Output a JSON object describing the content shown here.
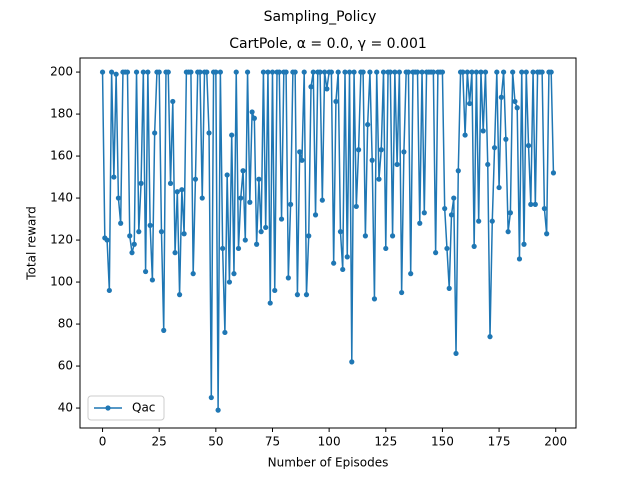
{
  "chart_data": {
    "type": "line",
    "suptitle": "Sampling_Policy",
    "title": "CartPole, α = 0.0, γ = 0.001",
    "xlabel": "Number of Episodes",
    "ylabel": "Total reward",
    "x": [
      0,
      1,
      2,
      3,
      4,
      5,
      6,
      7,
      8,
      9,
      10,
      11,
      12,
      13,
      14,
      15,
      16,
      17,
      18,
      19,
      20,
      21,
      22,
      23,
      24,
      25,
      26,
      27,
      28,
      29,
      30,
      31,
      32,
      33,
      34,
      35,
      36,
      37,
      38,
      39,
      40,
      41,
      42,
      43,
      44,
      45,
      46,
      47,
      48,
      49,
      50,
      51,
      52,
      53,
      54,
      55,
      56,
      57,
      58,
      59,
      60,
      61,
      62,
      63,
      64,
      65,
      66,
      67,
      68,
      69,
      70,
      71,
      72,
      73,
      74,
      75,
      76,
      77,
      78,
      79,
      80,
      81,
      82,
      83,
      84,
      85,
      86,
      87,
      88,
      89,
      90,
      91,
      92,
      93,
      94,
      95,
      96,
      97,
      98,
      99,
      100,
      101,
      102,
      103,
      104,
      105,
      106,
      107,
      108,
      109,
      110,
      111,
      112,
      113,
      114,
      115,
      116,
      117,
      118,
      119,
      120,
      121,
      122,
      123,
      124,
      125,
      126,
      127,
      128,
      129,
      130,
      131,
      132,
      133,
      134,
      135,
      136,
      137,
      138,
      139,
      140,
      141,
      142,
      143,
      144,
      145,
      146,
      147,
      148,
      149,
      150,
      151,
      152,
      153,
      154,
      155,
      156,
      157,
      158,
      159,
      160,
      161,
      162,
      163,
      164,
      165,
      166,
      167,
      168,
      169,
      170,
      171,
      172,
      173,
      174,
      175,
      176,
      177,
      178,
      179,
      180,
      181,
      182,
      183,
      184,
      185,
      186,
      187,
      188,
      189,
      190,
      191,
      192,
      193,
      194,
      195,
      196,
      197,
      198,
      199
    ],
    "series": [
      {
        "name": "Qac",
        "color": "#1f77b4",
        "values": [
          200,
          121,
          120,
          96,
          200,
          150,
          199,
          140,
          128,
          200,
          200,
          200,
          122,
          114,
          118,
          200,
          124,
          147,
          200,
          105,
          200,
          127,
          101,
          171,
          200,
          200,
          124,
          77,
          200,
          200,
          147,
          186,
          114,
          143,
          94,
          144,
          123,
          200,
          200,
          200,
          104,
          149,
          200,
          200,
          140,
          200,
          200,
          171,
          45,
          200,
          200,
          39,
          200,
          116,
          76,
          151,
          100,
          170,
          104,
          200,
          116,
          140,
          153,
          120,
          200,
          138,
          181,
          178,
          118,
          149,
          124,
          200,
          126,
          200,
          90,
          200,
          96,
          200,
          200,
          130,
          200,
          200,
          102,
          137,
          200,
          200,
          94,
          162,
          158,
          200,
          94,
          122,
          193,
          200,
          132,
          200,
          200,
          139,
          200,
          192,
          200,
          200,
          109,
          186,
          200,
          124,
          106,
          200,
          112,
          200,
          62,
          200,
          136,
          163,
          200,
          200,
          122,
          175,
          200,
          158,
          92,
          200,
          149,
          163,
          200,
          116,
          200,
          200,
          122,
          200,
          156,
          200,
          95,
          162,
          200,
          200,
          104,
          200,
          200,
          200,
          128,
          200,
          133,
          200,
          200,
          200,
          200,
          114,
          200,
          200,
          200,
          135,
          116,
          97,
          132,
          140,
          66,
          153,
          200,
          200,
          170,
          200,
          185,
          200,
          117,
          200,
          129,
          200,
          172,
          200,
          156,
          74,
          129,
          164,
          200,
          145,
          188,
          200,
          168,
          124,
          133,
          200,
          186,
          183,
          111,
          200,
          118,
          200,
          165,
          137,
          200,
          137,
          200,
          200,
          200,
          135,
          123,
          200,
          200,
          152
        ]
      }
    ],
    "xlim": [
      -9.95,
      208.95
    ],
    "ylim": [
      30.5,
      206.7
    ],
    "xticks": [
      0,
      25,
      50,
      75,
      100,
      125,
      150,
      175,
      200
    ],
    "yticks": [
      40,
      60,
      80,
      100,
      120,
      140,
      160,
      180,
      200
    ],
    "legend": "lower left"
  }
}
